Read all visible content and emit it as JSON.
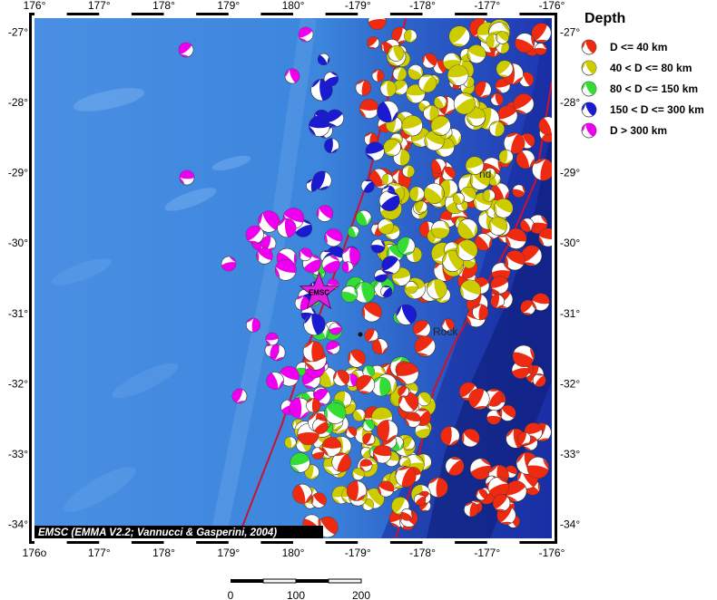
{
  "map": {
    "lon_ticks": [
      "176°",
      "177°",
      "178°",
      "179°",
      "180°",
      "-179°",
      "-178°",
      "-177°",
      "-176°"
    ],
    "lon_ticks_bottom": [
      "176o",
      "177°",
      "178°",
      "179°",
      "180°",
      "-179°",
      "-178°",
      "-177°",
      "-176°"
    ],
    "lat_ticks_left": [
      "-27°",
      "-28°",
      "-29°",
      "-30°",
      "-31°",
      "-32°",
      "-33°",
      "-34°"
    ],
    "lat_ticks_right": [
      "-27°",
      "-28°",
      "-29°",
      "-30°",
      "-31°",
      "-32°",
      "-33°",
      "-34°"
    ],
    "lon_range": [
      176,
      184
    ],
    "lat_range": [
      -34.2,
      -26.8
    ],
    "epicenter_label": "EMSC",
    "epicenter": {
      "lon": 180.4,
      "lat": -30.7,
      "color": "#e020e0"
    },
    "place_labels": [
      "nd",
      "Rock"
    ],
    "credit": "EMSC (EMMA V2.2; Vannucci & Gasperini, 2004)",
    "plate_boundary_color": "#cc1133",
    "ocean_colors": {
      "shallow": "#3c86dd",
      "deep": "#1e2fa8",
      "trench": "#0c1a72"
    }
  },
  "legend": {
    "title": "Depth",
    "items": [
      {
        "label": "D <= 40 km",
        "color": "#ee2a10"
      },
      {
        "label": "40 < D <= 80 km",
        "color": "#cccc00"
      },
      {
        "label": "80 < D <= 150 km",
        "color": "#33dd33"
      },
      {
        "label": "150 < D <= 300 km",
        "color": "#1a1ad0"
      },
      {
        "label": "D > 300 km",
        "color": "#ee00ee"
      }
    ]
  },
  "scale_bar": {
    "labels": [
      "0",
      "100",
      "200"
    ],
    "unit": ""
  }
}
